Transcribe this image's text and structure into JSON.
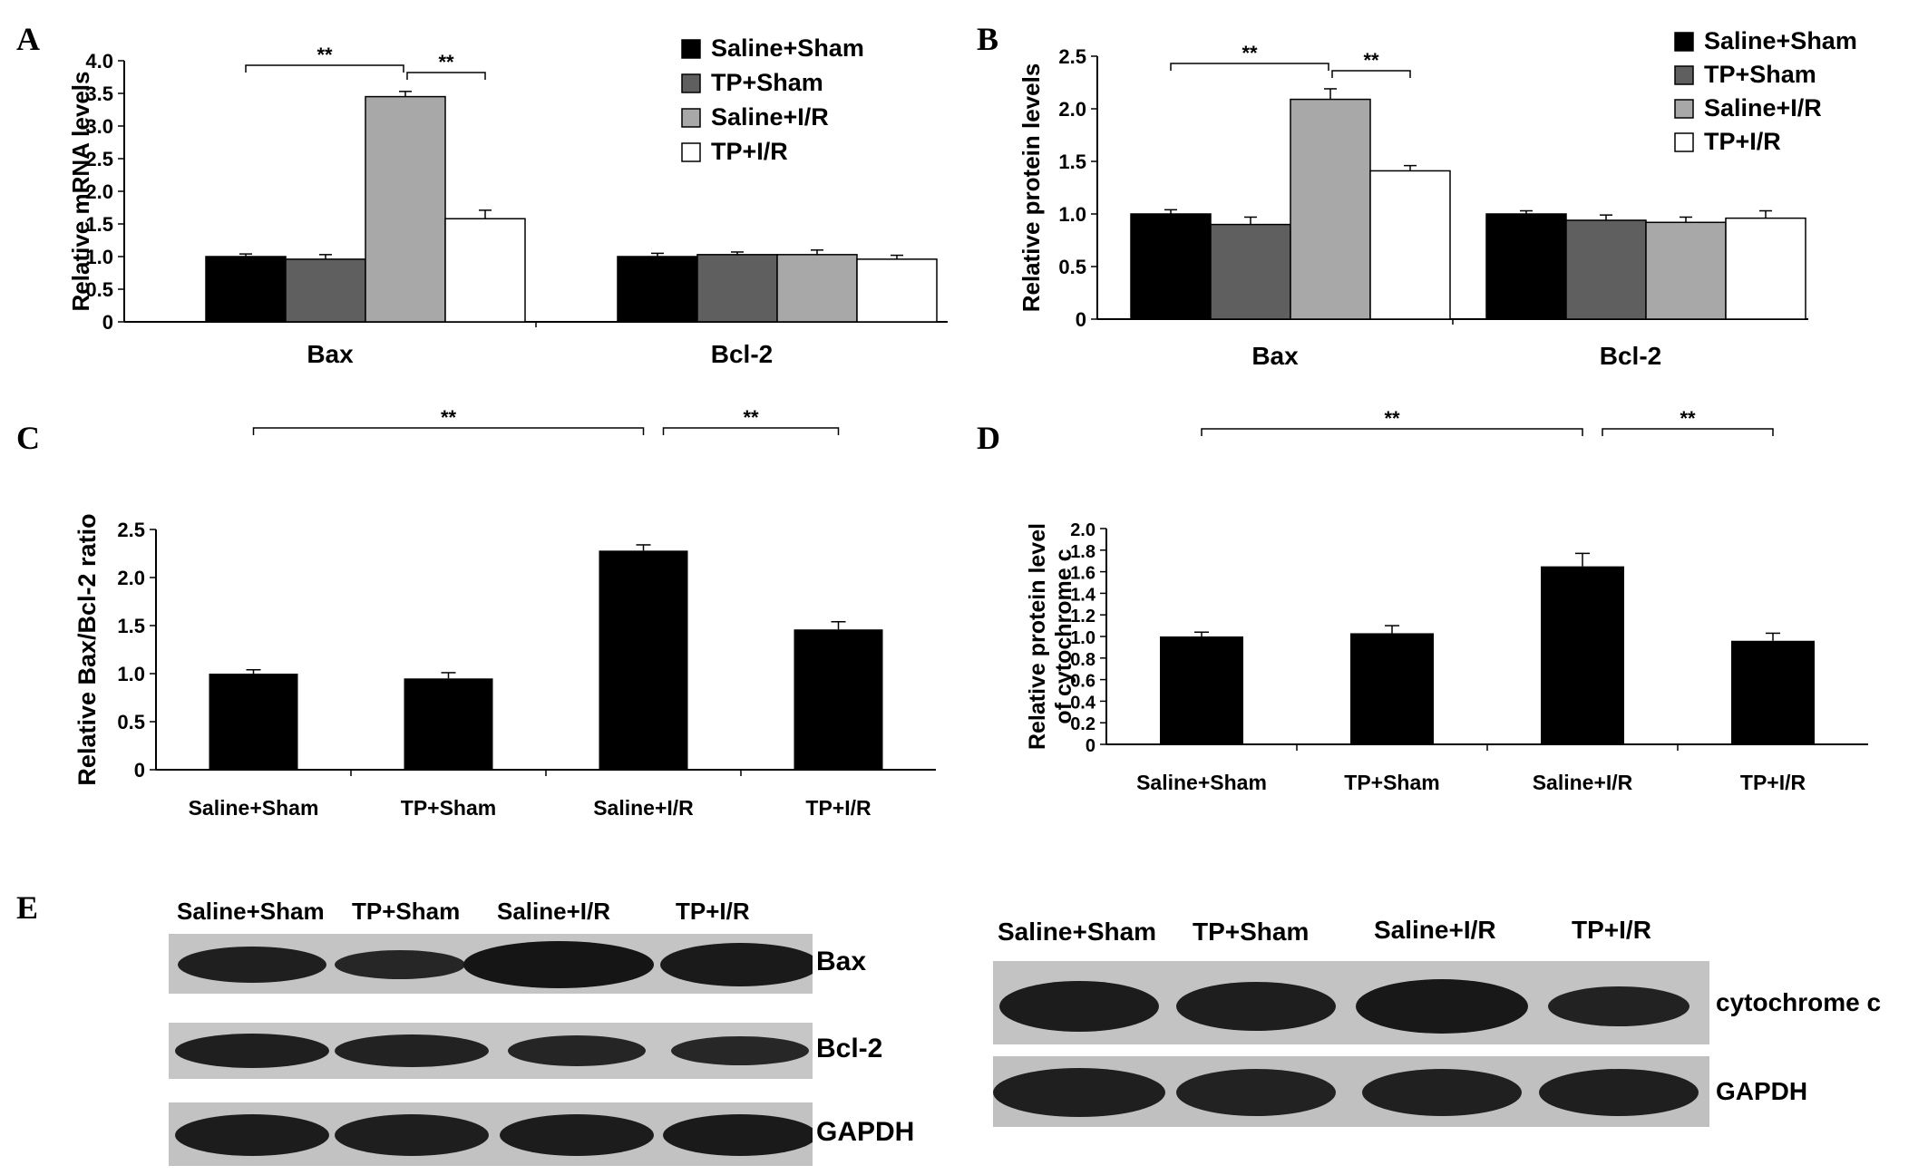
{
  "panel_labels": [
    "A",
    "B",
    "C",
    "D",
    "E"
  ],
  "colors": {
    "saline_sham": "#000000",
    "tp_sham": "#5f5f5f",
    "saline_ir": "#a8a8a8",
    "tp_ir": "#ffffff"
  },
  "chart_data": [
    {
      "panel": "A",
      "type": "bar",
      "ylabel": "Relative mRNA levels",
      "ylim": [
        0,
        4.0
      ],
      "yticks": [
        "0",
        "0.5",
        "1.0",
        "1.5",
        "2.0",
        "2.5",
        "3.0",
        "3.5",
        "4.0"
      ],
      "categories": [
        "Bax",
        "Bcl-2"
      ],
      "series": [
        {
          "name": "Saline+Sham",
          "values": [
            1.0,
            1.0
          ],
          "errors": [
            0.04,
            0.05
          ],
          "color": "#000000"
        },
        {
          "name": "TP+Sham",
          "values": [
            0.96,
            1.03
          ],
          "errors": [
            0.07,
            0.04
          ],
          "color": "#5f5f5f"
        },
        {
          "name": "Saline+I/R",
          "values": [
            3.45,
            1.03
          ],
          "errors": [
            0.08,
            0.07
          ],
          "color": "#a8a8a8"
        },
        {
          "name": "TP+I/R",
          "values": [
            1.58,
            0.96
          ],
          "errors": [
            0.13,
            0.06
          ],
          "color": "#ffffff"
        }
      ],
      "legend": "top-right",
      "significance": [
        {
          "from_series": 0,
          "to_series": 2,
          "category": 0,
          "label": "**"
        },
        {
          "from_series": 2,
          "to_series": 3,
          "category": 0,
          "label": "**"
        }
      ]
    },
    {
      "panel": "B",
      "type": "bar",
      "ylabel": "Relative protein levels",
      "ylim": [
        0,
        2.5
      ],
      "yticks": [
        "0",
        "0.5",
        "1.0",
        "1.5",
        "2.0",
        "2.5"
      ],
      "categories": [
        "Bax",
        "Bcl-2"
      ],
      "series": [
        {
          "name": "Saline+Sham",
          "values": [
            1.0,
            1.0
          ],
          "errors": [
            0.04,
            0.03
          ],
          "color": "#000000"
        },
        {
          "name": "TP+Sham",
          "values": [
            0.9,
            0.94
          ],
          "errors": [
            0.07,
            0.05
          ],
          "color": "#5f5f5f"
        },
        {
          "name": "Saline+I/R",
          "values": [
            2.09,
            0.92
          ],
          "errors": [
            0.1,
            0.05
          ],
          "color": "#a8a8a8"
        },
        {
          "name": "TP+I/R",
          "values": [
            1.41,
            0.96
          ],
          "errors": [
            0.05,
            0.07
          ],
          "color": "#ffffff"
        }
      ],
      "legend": "top-right",
      "significance": [
        {
          "from_series": 0,
          "to_series": 2,
          "category": 0,
          "label": "**"
        },
        {
          "from_series": 2,
          "to_series": 3,
          "category": 0,
          "label": "**"
        }
      ]
    },
    {
      "panel": "C",
      "type": "bar",
      "ylabel": "Relative Bax/Bcl-2 ratio",
      "ylim": [
        0,
        2.5
      ],
      "yticks": [
        "0",
        "0.5",
        "1.0",
        "1.5",
        "2.0",
        "2.5"
      ],
      "categories": [
        "Saline+Sham",
        "TP+Sham",
        "Saline+I/R",
        "TP+I/R"
      ],
      "values": [
        1.0,
        0.95,
        2.28,
        1.46
      ],
      "errors": [
        0.04,
        0.06,
        0.06,
        0.08
      ],
      "color": "#000000",
      "significance": [
        {
          "from": 0,
          "to": 2,
          "label": "**"
        },
        {
          "from": 2,
          "to": 3,
          "label": "**"
        }
      ]
    },
    {
      "panel": "D",
      "type": "bar",
      "ylabel": [
        "Relative protein level",
        "of cytochrome c"
      ],
      "ylim": [
        0,
        2.0
      ],
      "yticks": [
        "0",
        "0.2",
        "0.4",
        "0.6",
        "0.8",
        "1.0",
        "1.2",
        "1.4",
        "1.6",
        "1.8",
        "2.0"
      ],
      "categories": [
        "Saline+Sham",
        "TP+Sham",
        "Saline+I/R",
        "TP+I/R"
      ],
      "values": [
        1.0,
        1.03,
        1.65,
        0.96
      ],
      "errors": [
        0.04,
        0.07,
        0.12,
        0.07
      ],
      "color": "#000000",
      "significance": [
        {
          "from": 0,
          "to": 2,
          "label": "**"
        },
        {
          "from": 2,
          "to": 3,
          "label": "**"
        }
      ]
    }
  ],
  "blots": {
    "left": {
      "lanes": [
        "Saline+Sham",
        "TP+Sham",
        "Saline+I/R",
        "TP+I/R"
      ],
      "rows": [
        "Bax",
        "Bcl-2",
        "GAPDH"
      ]
    },
    "right": {
      "lanes": [
        "Saline+Sham",
        "TP+Sham",
        "Saline+I/R",
        "TP+I/R"
      ],
      "rows": [
        "cytochrome c",
        "GAPDH"
      ]
    }
  }
}
